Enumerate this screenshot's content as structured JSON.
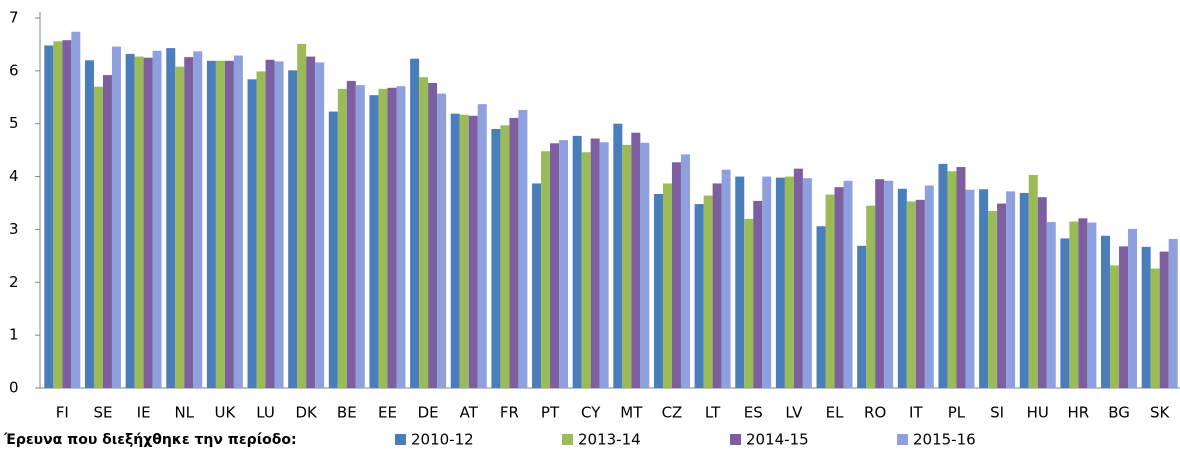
{
  "chart_data": {
    "type": "bar",
    "categories": [
      "FI",
      "SE",
      "IE",
      "NL",
      "UK",
      "LU",
      "DK",
      "BE",
      "EE",
      "DE",
      "AT",
      "FR",
      "PT",
      "CY",
      "MT",
      "CZ",
      "LT",
      "ES",
      "LV",
      "EL",
      "RO",
      "IT",
      "PL",
      "SI",
      "HU",
      "HR",
      "BG",
      "SK"
    ],
    "series": [
      {
        "name": "2010-12",
        "color": "#4a7ebb",
        "values": [
          6.48,
          6.2,
          6.32,
          6.43,
          6.19,
          5.84,
          6.01,
          5.23,
          5.54,
          6.23,
          5.19,
          4.9,
          3.87,
          4.77,
          5.0,
          3.67,
          3.48,
          4.0,
          3.98,
          3.06,
          2.69,
          3.77,
          4.24,
          3.76,
          3.69,
          2.83,
          2.88,
          2.67
        ]
      },
      {
        "name": "2013-14",
        "color": "#9bbb59",
        "values": [
          6.56,
          5.7,
          6.27,
          6.08,
          6.19,
          5.99,
          6.51,
          5.66,
          5.66,
          5.88,
          5.17,
          4.97,
          4.48,
          4.46,
          4.6,
          3.87,
          3.64,
          3.2,
          4.0,
          3.66,
          3.45,
          3.53,
          4.1,
          3.35,
          4.03,
          3.15,
          2.32,
          2.26
        ]
      },
      {
        "name": "2014-15",
        "color": "#7d5fa0",
        "values": [
          6.58,
          5.92,
          6.25,
          6.26,
          6.19,
          6.21,
          6.27,
          5.81,
          5.68,
          5.77,
          5.15,
          5.11,
          4.63,
          4.72,
          4.83,
          4.27,
          3.87,
          3.54,
          4.15,
          3.8,
          3.95,
          3.56,
          4.18,
          3.49,
          3.61,
          3.21,
          2.68,
          2.58
        ]
      },
      {
        "name": "2015-16",
        "color": "#8ea1de",
        "values": [
          6.74,
          6.46,
          6.38,
          6.37,
          6.29,
          6.18,
          6.16,
          5.73,
          5.71,
          5.57,
          5.37,
          5.26,
          4.69,
          4.65,
          4.64,
          4.42,
          4.13,
          4.0,
          3.97,
          3.92,
          3.92,
          3.83,
          3.75,
          3.72,
          3.14,
          3.13,
          3.01,
          2.82
        ]
      }
    ],
    "legend_title": "Έρευνα που διεξήχθηκε την περίοδο:",
    "ylim": [
      0,
      7
    ],
    "yticks": [
      0,
      1,
      2,
      3,
      4,
      5,
      6,
      7
    ],
    "grid": false,
    "legend": "bottom"
  }
}
